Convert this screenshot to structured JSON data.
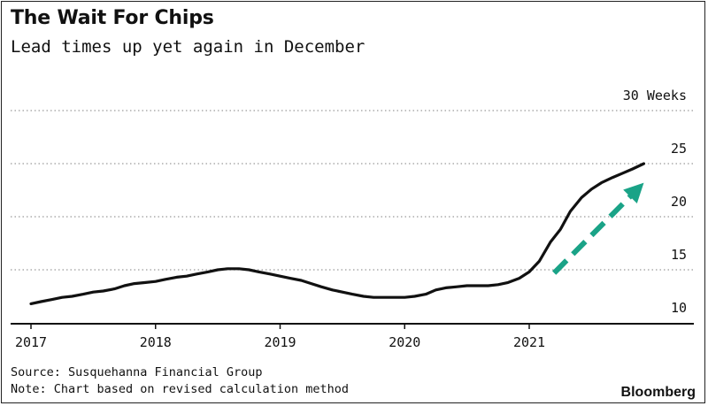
{
  "chart_data": {
    "type": "line",
    "title": "The Wait For Chips",
    "subtitle": "Lead times up yet again in December",
    "ylim": [
      10,
      30
    ],
    "xlim": [
      2017,
      2022
    ],
    "y_ticks": [
      {
        "value": 10,
        "label": "10"
      },
      {
        "value": 15,
        "label": "15"
      },
      {
        "value": 20,
        "label": "20"
      },
      {
        "value": 25,
        "label": "25"
      },
      {
        "value": 30,
        "label": "30 Weeks"
      }
    ],
    "x_ticks": [
      {
        "value": 2017,
        "label": "2017"
      },
      {
        "value": 2018,
        "label": "2018"
      },
      {
        "value": 2019,
        "label": "2019"
      },
      {
        "value": 2020,
        "label": "2020"
      },
      {
        "value": 2021,
        "label": "2021"
      }
    ],
    "grid": "horizontal dotted",
    "series": [
      {
        "color": "#111111",
        "points": [
          [
            2017.0,
            11.8
          ],
          [
            2017.08,
            12.0
          ],
          [
            2017.17,
            12.2
          ],
          [
            2017.25,
            12.4
          ],
          [
            2017.33,
            12.5
          ],
          [
            2017.42,
            12.7
          ],
          [
            2017.5,
            12.9
          ],
          [
            2017.58,
            13.0
          ],
          [
            2017.67,
            13.2
          ],
          [
            2017.75,
            13.5
          ],
          [
            2017.83,
            13.7
          ],
          [
            2017.92,
            13.8
          ],
          [
            2018.0,
            13.9
          ],
          [
            2018.08,
            14.1
          ],
          [
            2018.17,
            14.3
          ],
          [
            2018.25,
            14.4
          ],
          [
            2018.33,
            14.6
          ],
          [
            2018.42,
            14.8
          ],
          [
            2018.5,
            15.0
          ],
          [
            2018.58,
            15.1
          ],
          [
            2018.67,
            15.1
          ],
          [
            2018.75,
            15.0
          ],
          [
            2018.83,
            14.8
          ],
          [
            2018.92,
            14.6
          ],
          [
            2019.0,
            14.4
          ],
          [
            2019.08,
            14.2
          ],
          [
            2019.17,
            14.0
          ],
          [
            2019.25,
            13.7
          ],
          [
            2019.33,
            13.4
          ],
          [
            2019.42,
            13.1
          ],
          [
            2019.5,
            12.9
          ],
          [
            2019.58,
            12.7
          ],
          [
            2019.67,
            12.5
          ],
          [
            2019.75,
            12.4
          ],
          [
            2019.83,
            12.4
          ],
          [
            2019.92,
            12.4
          ],
          [
            2020.0,
            12.4
          ],
          [
            2020.08,
            12.5
          ],
          [
            2020.17,
            12.7
          ],
          [
            2020.25,
            13.1
          ],
          [
            2020.33,
            13.3
          ],
          [
            2020.42,
            13.4
          ],
          [
            2020.5,
            13.5
          ],
          [
            2020.58,
            13.5
          ],
          [
            2020.67,
            13.5
          ],
          [
            2020.75,
            13.6
          ],
          [
            2020.83,
            13.8
          ],
          [
            2020.92,
            14.2
          ],
          [
            2021.0,
            14.8
          ],
          [
            2021.08,
            15.8
          ],
          [
            2021.17,
            17.6
          ],
          [
            2021.25,
            18.8
          ],
          [
            2021.33,
            20.5
          ],
          [
            2021.42,
            21.8
          ],
          [
            2021.5,
            22.6
          ],
          [
            2021.58,
            23.2
          ],
          [
            2021.67,
            23.7
          ],
          [
            2021.75,
            24.1
          ],
          [
            2021.83,
            24.5
          ],
          [
            2021.92,
            25.0
          ]
        ]
      }
    ],
    "annotation_arrow": {
      "color": "#1aa387",
      "from": [
        2021.2,
        14.7
      ],
      "to": [
        2021.92,
        23.2
      ]
    }
  },
  "footer": {
    "source": "Source: Susquehanna Financial Group",
    "note": "Note: Chart based on revised calculation method",
    "brand": "Bloomberg"
  }
}
